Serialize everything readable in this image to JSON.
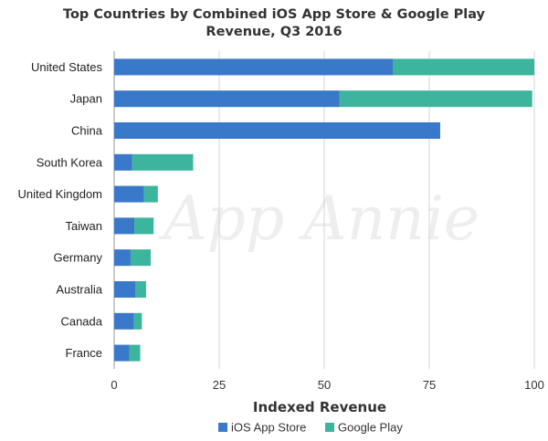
{
  "chart_data": {
    "type": "bar",
    "orientation": "horizontal",
    "stacked": true,
    "title_lines": [
      "Top Countries by Combined iOS App Store & Google Play",
      "Revenue, Q3 2016"
    ],
    "categories": [
      "United States",
      "Japan",
      "China",
      "South Korea",
      "United Kingdom",
      "Taiwan",
      "Germany",
      "Australia",
      "Canada",
      "France"
    ],
    "series": [
      {
        "name": "iOS App Store",
        "color": "#3a78c9",
        "values": [
          66.3,
          53.6,
          77.6,
          4.3,
          7.1,
          4.8,
          3.9,
          5.0,
          4.7,
          3.6
        ]
      },
      {
        "name": "Google Play",
        "color": "#3cb49e",
        "values": [
          33.7,
          45.9,
          0,
          14.5,
          3.3,
          4.6,
          4.8,
          2.6,
          1.9,
          2.6
        ]
      }
    ],
    "xlabel": "Indexed Revenue",
    "ylabel": "",
    "xlim": [
      0,
      100
    ],
    "xticks": [
      0,
      25,
      50,
      75,
      100
    ],
    "grid": true,
    "legend_position": "bottom",
    "watermark": "App Annie"
  }
}
